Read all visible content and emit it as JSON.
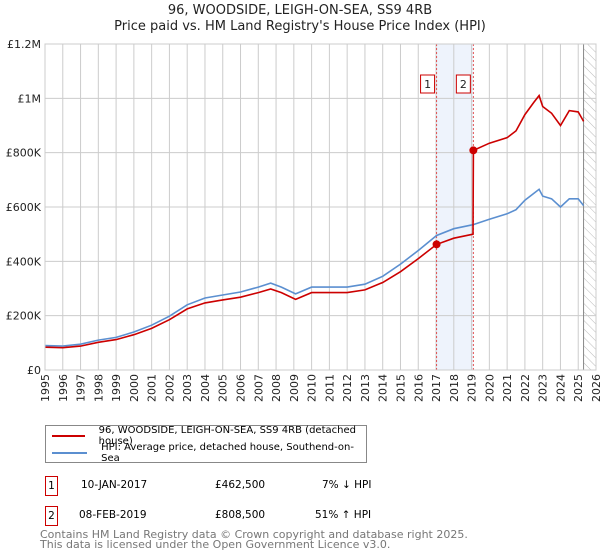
{
  "title_line1": "96, WOODSIDE, LEIGH-ON-SEA, SS9 4RB",
  "title_line2": "Price paid vs. HM Land Registry's House Price Index (HPI)",
  "chart_data": {
    "type": "line",
    "xlim": [
      1995,
      2026
    ],
    "ylim": [
      0,
      1200000
    ],
    "x_ticks": [
      "1995",
      "1996",
      "1997",
      "1998",
      "1999",
      "2000",
      "2001",
      "2002",
      "2003",
      "2004",
      "2005",
      "2006",
      "2007",
      "2008",
      "2009",
      "2010",
      "2011",
      "2012",
      "2013",
      "2014",
      "2015",
      "2016",
      "2017",
      "2018",
      "2019",
      "2020",
      "2021",
      "2022",
      "2023",
      "2024",
      "2025",
      "2026"
    ],
    "y_ticks": [
      {
        "v": 0,
        "label": "£0"
      },
      {
        "v": 200000,
        "label": "£200K"
      },
      {
        "v": 400000,
        "label": "£400K"
      },
      {
        "v": 600000,
        "label": "£600K"
      },
      {
        "v": 800000,
        "label": "£800K"
      },
      {
        "v": 1000000,
        "label": "£1M"
      },
      {
        "v": 1200000,
        "label": "£1.2M"
      }
    ],
    "series": [
      {
        "name": "96, WOODSIDE, LEIGH-ON-SEA, SS9 4RB (detached house)",
        "color": "#cc0000",
        "x": [
          1995,
          1996,
          1997,
          1998,
          1999,
          2000,
          2001,
          2002,
          2003,
          2004,
          2005,
          2006,
          2007,
          2007.7,
          2008.3,
          2009.1,
          2010,
          2011,
          2012,
          2013,
          2014,
          2015,
          2016,
          2017.03,
          2018,
          2019.08,
          2019.1,
          2020,
          2021,
          2021.5,
          2022,
          2022.5,
          2022.8,
          2023,
          2023.5,
          2024,
          2024.5,
          2025,
          2025.3
        ],
        "y": [
          84000,
          82000,
          88000,
          102000,
          112000,
          130000,
          153000,
          185000,
          225000,
          247000,
          258000,
          268000,
          285000,
          298000,
          285000,
          260000,
          285000,
          285000,
          285000,
          295000,
          322000,
          362000,
          410000,
          462500,
          485000,
          500000,
          808500,
          835000,
          855000,
          880000,
          940000,
          985000,
          1010000,
          970000,
          945000,
          900000,
          955000,
          950000,
          915000
        ]
      },
      {
        "name": "HPI: Average price, detached house, Southend-on-Sea",
        "color": "#5b8fd0",
        "x": [
          1995,
          1996,
          1997,
          1998,
          1999,
          2000,
          2001,
          2002,
          2003,
          2004,
          2005,
          2006,
          2007,
          2007.7,
          2008.3,
          2009.1,
          2010,
          2011,
          2012,
          2013,
          2014,
          2015,
          2016,
          2017.03,
          2018,
          2019.08,
          2020,
          2021,
          2021.5,
          2022,
          2022.5,
          2022.8,
          2023,
          2023.5,
          2024,
          2024.5,
          2025,
          2025.3
        ],
        "y": [
          90000,
          88000,
          95000,
          110000,
          120000,
          140000,
          165000,
          198000,
          240000,
          265000,
          276000,
          287000,
          305000,
          320000,
          305000,
          280000,
          305000,
          305000,
          305000,
          316000,
          345000,
          390000,
          440000,
          495000,
          520000,
          535000,
          555000,
          575000,
          590000,
          625000,
          650000,
          665000,
          640000,
          630000,
          600000,
          630000,
          630000,
          605000
        ]
      }
    ],
    "sales": [
      {
        "label": "1",
        "x": 2017.03,
        "y": 462500,
        "date": "10-JAN-2017",
        "price": "£462,500",
        "hpi": "7% ↓ HPI"
      },
      {
        "label": "2",
        "x": 2019.1,
        "y": 808500,
        "date": "08-FEB-2019",
        "price": "£808,500",
        "hpi": "51% ↑ HPI"
      }
    ],
    "forecast_start": 2025.3
  },
  "footer_line1": "Contains HM Land Registry data © Crown copyright and database right 2025.",
  "footer_line2": "This data is licensed under the Open Government Licence v3.0."
}
